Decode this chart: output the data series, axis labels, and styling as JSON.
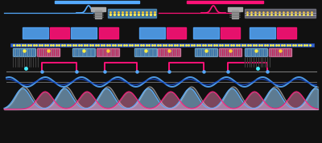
{
  "bg_color": "#111111",
  "blue": "#55aaff",
  "blue2": "#4488dd",
  "pink": "#ff1177",
  "dark_blue": "#1133aa",
  "gray": "#777777",
  "light_blue": "#88ccff",
  "light_pink": "#ff88bb",
  "white": "#ffffff",
  "dark_gray": "#333333",
  "yellow": "#ffee44",
  "gray2": "#999999",
  "gray_bg": "#555555",
  "navy": "#2244aa"
}
